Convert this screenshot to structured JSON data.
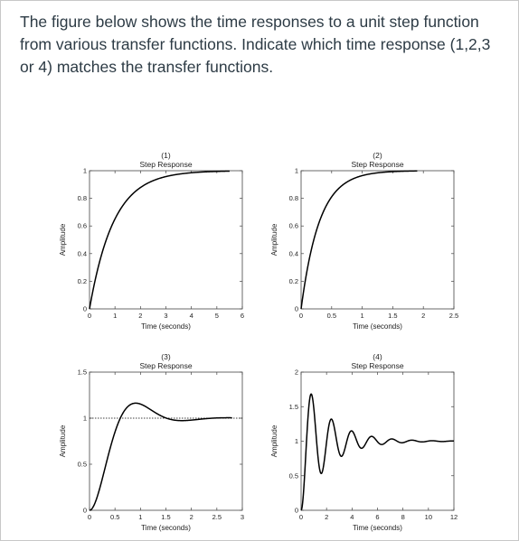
{
  "question": {
    "lines": [
      "The figure below shows the time responses to a unit step function",
      "from various transfer functions. Indicate which time response (1,2,3",
      "or 4)  matches the transfer functions."
    ]
  },
  "chart_data": [
    {
      "type": "line",
      "title": "(1)",
      "subtitle": "Step Response",
      "xlabel": "Time (seconds)",
      "ylabel": "Amplitude",
      "xlim": [
        0,
        6
      ],
      "ylim": [
        0,
        1
      ],
      "xticks": [
        "0",
        "1",
        "2",
        "3",
        "4",
        "5",
        "6"
      ],
      "yticks": [
        "0",
        "0.2",
        "0.4",
        "0.6",
        "0.8",
        "1"
      ],
      "xtick_values": [
        0,
        1,
        2,
        3,
        4,
        5,
        6
      ],
      "ytick_values": [
        0,
        0.2,
        0.4,
        0.6,
        0.8,
        1
      ],
      "response": "first-order",
      "params": {
        "tau": 0.95,
        "final": 1
      },
      "series": [
        {
          "x_end": 5.5
        }
      ]
    },
    {
      "type": "line",
      "title": "(2)",
      "subtitle": "Step Response",
      "xlabel": "Time (seconds)",
      "ylabel": "Amplitude",
      "xlim": [
        0,
        2.5
      ],
      "ylim": [
        0,
        1
      ],
      "xticks": [
        "0",
        "0.5",
        "1",
        "1.5",
        "2",
        "2.5"
      ],
      "yticks": [
        "0",
        "0.2",
        "0.4",
        "0.6",
        "0.8",
        "1"
      ],
      "xtick_values": [
        0,
        0.5,
        1,
        1.5,
        2,
        2.5
      ],
      "ytick_values": [
        0,
        0.2,
        0.4,
        0.6,
        0.8,
        1
      ],
      "response": "first-order",
      "params": {
        "tau": 0.3,
        "final": 1
      },
      "series": [
        {
          "x_end": 1.9
        }
      ]
    },
    {
      "type": "line",
      "title": "(3)",
      "subtitle": "Step Response",
      "xlabel": "Time (seconds)",
      "ylabel": "Amplitude",
      "xlim": [
        0,
        3
      ],
      "ylim": [
        0,
        1.5
      ],
      "xticks": [
        "0",
        "0.5",
        "1",
        "1.5",
        "2",
        "2.5",
        "3"
      ],
      "yticks": [
        "0",
        "0.5",
        "1",
        "1.5"
      ],
      "xtick_values": [
        0,
        0.5,
        1,
        1.5,
        2,
        2.5,
        3
      ],
      "ytick_values": [
        0,
        0.5,
        1,
        1.5
      ],
      "response": "second-order",
      "params": {
        "zeta": 0.5,
        "wn": 4.0,
        "final": 1
      },
      "reference_line": 1,
      "series": [
        {
          "x_end": 2.8
        }
      ]
    },
    {
      "type": "line",
      "title": "(4)",
      "subtitle": "Step Response",
      "xlabel": "Time (seconds)",
      "ylabel": "Amplitude",
      "xlim": [
        0,
        12
      ],
      "ylim": [
        0,
        2
      ],
      "xticks": [
        "0",
        "2",
        "4",
        "6",
        "8",
        "10",
        "12"
      ],
      "yticks": [
        "0",
        "0.5",
        "1",
        "1.5",
        "2"
      ],
      "xtick_values": [
        0,
        2,
        4,
        6,
        8,
        10,
        12
      ],
      "ytick_values": [
        0,
        0.5,
        1,
        1.5,
        2
      ],
      "response": "second-order",
      "params": {
        "zeta": 0.12,
        "wn": 4.0,
        "final": 1
      },
      "series": [
        {
          "x_end": 12
        }
      ]
    }
  ]
}
